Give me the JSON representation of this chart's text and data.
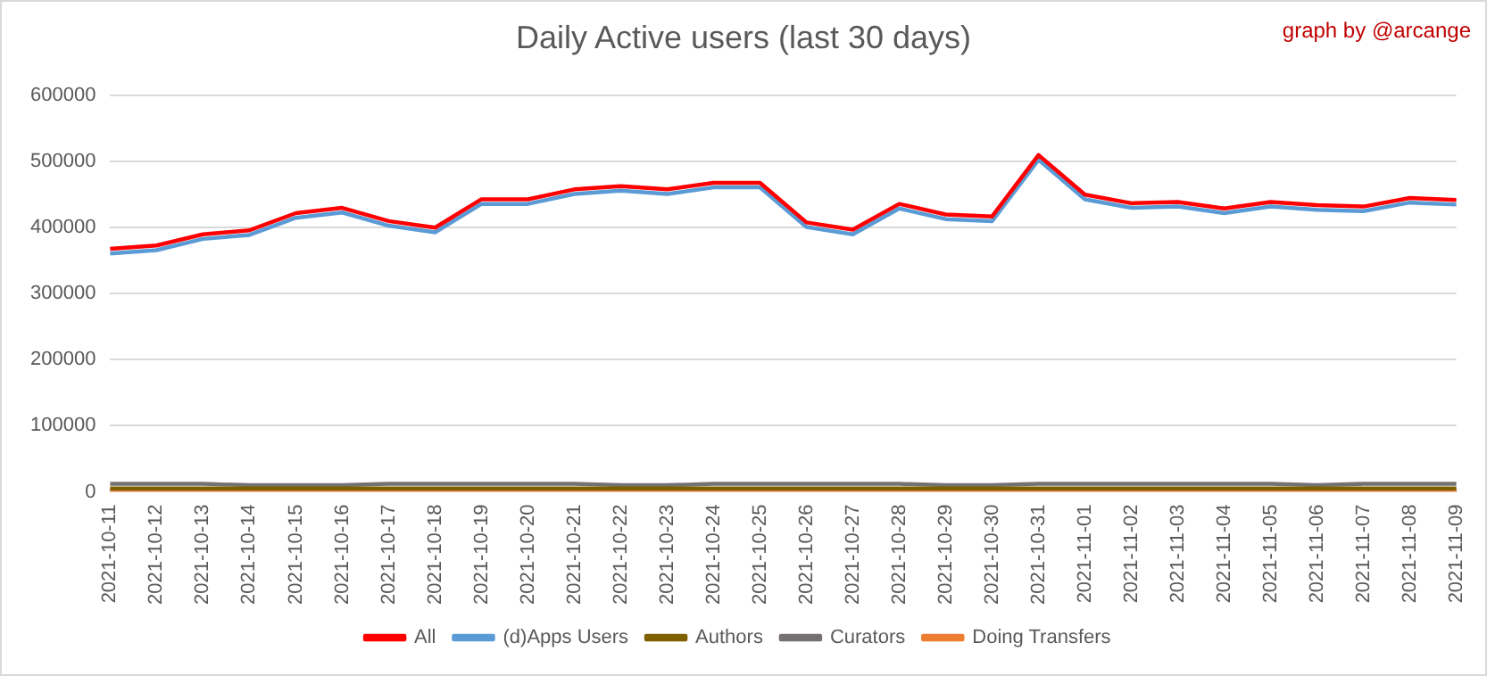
{
  "chart_data": {
    "type": "line",
    "title": "Daily Active users (last 30 days)",
    "annotations": [
      "graph by @arcange"
    ],
    "categories": [
      "2021-10-11",
      "2021-10-12",
      "2021-10-13",
      "2021-10-14",
      "2021-10-15",
      "2021-10-16",
      "2021-10-17",
      "2021-10-18",
      "2021-10-19",
      "2021-10-20",
      "2021-10-21",
      "2021-10-22",
      "2021-10-23",
      "2021-10-24",
      "2021-10-25",
      "2021-10-26",
      "2021-10-27",
      "2021-10-28",
      "2021-10-29",
      "2021-10-30",
      "2021-10-31",
      "2021-11-01",
      "2021-11-02",
      "2021-11-03",
      "2021-11-04",
      "2021-11-05",
      "2021-11-06",
      "2021-11-07",
      "2021-11-08",
      "2021-11-09"
    ],
    "series": [
      {
        "name": "All",
        "color": "#ff0000",
        "values": [
          368000,
          373000,
          390000,
          396000,
          422000,
          430000,
          410000,
          400000,
          443000,
          443000,
          458000,
          463000,
          458000,
          468000,
          468000,
          408000,
          397000,
          436000,
          420000,
          417000,
          510000,
          450000,
          437000,
          439000,
          429000,
          439000,
          434000,
          432000,
          445000,
          442000
        ]
      },
      {
        "name": "(d)Apps Users",
        "color": "#5b9bd5",
        "values": [
          361000,
          366000,
          383000,
          389000,
          415000,
          423000,
          403000,
          393000,
          436000,
          436000,
          451000,
          456000,
          451000,
          461000,
          461000,
          401000,
          390000,
          429000,
          413000,
          410000,
          503000,
          443000,
          430000,
          432000,
          422000,
          432000,
          427000,
          425000,
          438000,
          435000
        ]
      },
      {
        "name": "Authors",
        "color": "#7f6000",
        "values": [
          5000,
          5000,
          5000,
          5000,
          5000,
          5000,
          5000,
          5000,
          5000,
          5000,
          5000,
          5000,
          5000,
          5000,
          5000,
          5000,
          5000,
          5000,
          5000,
          5000,
          5000,
          5000,
          5000,
          5000,
          5000,
          5000,
          5000,
          5000,
          5000,
          5000
        ]
      },
      {
        "name": "Curators",
        "color": "#767171",
        "values": [
          12000,
          12000,
          12000,
          10000,
          10000,
          10000,
          12000,
          12000,
          12000,
          12000,
          12000,
          10000,
          10000,
          12000,
          12000,
          12000,
          12000,
          12000,
          10000,
          10000,
          12000,
          12000,
          12000,
          12000,
          12000,
          12000,
          10000,
          12000,
          12000,
          12000
        ]
      },
      {
        "name": "Doing Transfers",
        "color": "#ed7d31",
        "values": [
          3000,
          3000,
          3000,
          3000,
          3000,
          3000,
          3000,
          3000,
          3000,
          3000,
          3000,
          3000,
          3000,
          3000,
          3000,
          3000,
          3000,
          3000,
          3000,
          3000,
          3000,
          3000,
          3000,
          3000,
          3000,
          3000,
          3000,
          3000,
          3000,
          3000
        ]
      }
    ],
    "ylim": [
      0,
      600000
    ],
    "yticks": [
      0,
      100000,
      200000,
      300000,
      400000,
      500000,
      600000
    ],
    "grid": "y",
    "legend": "bottom",
    "marker": "none",
    "line_style": "solid"
  }
}
